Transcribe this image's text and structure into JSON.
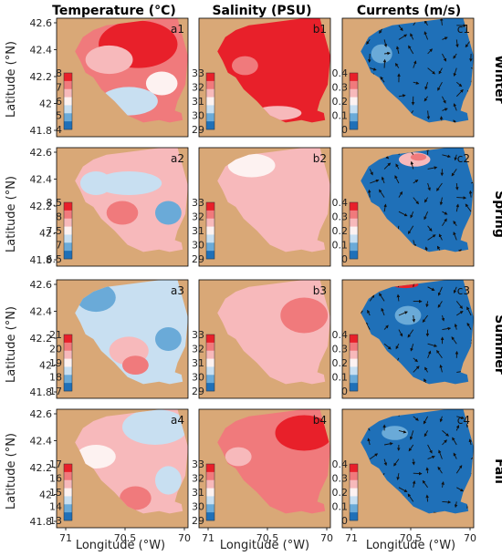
{
  "colors": {
    "land": "#d9a877",
    "red_dark": "#e8202a",
    "red_mid": "#f07a7c",
    "red_light": "#f7b9bb",
    "white": "#fdf2f1",
    "blue_light": "#c8dff1",
    "blue_mid": "#6aaad8",
    "blue_dark": "#1f70b8",
    "arrow": "#111111"
  },
  "axes": {
    "ylabel": "Latitude (°N)",
    "xlabel": "Longitude (°W)",
    "yticks": [
      "42.6",
      "42.4",
      "42.2",
      "42",
      "41.8"
    ],
    "xticks": [
      "71",
      "70.5",
      "70"
    ]
  },
  "chart_data": {
    "type": "heatmap",
    "columns": [
      {
        "title": "Temperature (°C)",
        "variable": "temperature"
      },
      {
        "title": "Salinity (PSU)",
        "variable": "salinity"
      },
      {
        "title": "Currents (m/s)",
        "variable": "currents"
      }
    ],
    "seasons": [
      "Winter",
      "Spring",
      "Summer",
      "Fall"
    ],
    "lat_range": [
      41.7,
      42.7
    ],
    "lon_range": [
      71.1,
      70.0
    ],
    "panels": [
      {
        "label": "a1",
        "row": 0,
        "col": 0,
        "colorbar": [
          "8",
          "7",
          "6",
          "5",
          "4"
        ]
      },
      {
        "label": "b1",
        "row": 0,
        "col": 1,
        "colorbar": [
          "33",
          "32",
          "31",
          "30",
          "29"
        ]
      },
      {
        "label": "c1",
        "row": 0,
        "col": 2,
        "colorbar": [
          "0.4",
          "0.3",
          "0.2",
          "0.1",
          "0"
        ]
      },
      {
        "label": "a2",
        "row": 1,
        "col": 0,
        "colorbar": [
          "8.5",
          "8",
          "7.5",
          "7",
          "6.5"
        ]
      },
      {
        "label": "b2",
        "row": 1,
        "col": 1,
        "colorbar": [
          "33",
          "32",
          "31",
          "30",
          "29"
        ]
      },
      {
        "label": "c2",
        "row": 1,
        "col": 2,
        "colorbar": [
          "0.4",
          "0.3",
          "0.2",
          "0.1",
          "0"
        ]
      },
      {
        "label": "a3",
        "row": 2,
        "col": 0,
        "colorbar": [
          "21",
          "20",
          "19",
          "18",
          "17"
        ]
      },
      {
        "label": "b3",
        "row": 2,
        "col": 1,
        "colorbar": [
          "33",
          "32",
          "31",
          "30",
          "29"
        ]
      },
      {
        "label": "c3",
        "row": 2,
        "col": 2,
        "colorbar": [
          "0.4",
          "0.3",
          "0.2",
          "0.1",
          "0"
        ]
      },
      {
        "label": "a4",
        "row": 3,
        "col": 0,
        "colorbar": [
          "17",
          "16",
          "15",
          "14",
          "13"
        ]
      },
      {
        "label": "b4",
        "row": 3,
        "col": 1,
        "colorbar": [
          "33",
          "32",
          "31",
          "30",
          "29"
        ]
      },
      {
        "label": "c4",
        "row": 3,
        "col": 2,
        "colorbar": [
          "0.4",
          "0.3",
          "0.2",
          "0.1",
          "0"
        ]
      }
    ]
  }
}
